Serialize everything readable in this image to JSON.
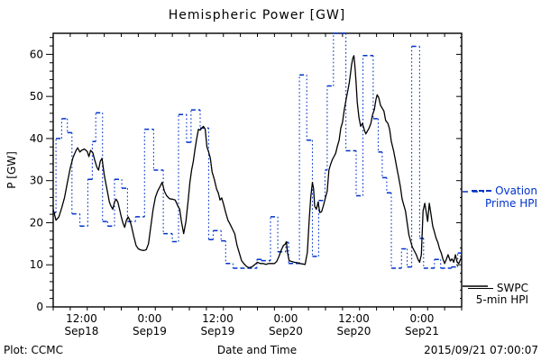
{
  "header": {
    "title": "Hemispheric Power [GW]"
  },
  "footer": {
    "credit": "Plot: CCMC",
    "timestamp": "2015/09/21 07:00:07"
  },
  "legend": {
    "ovation": {
      "line1": "Ovation",
      "line2": "Prime HPI",
      "color": "#0033cc",
      "style": "dashed"
    },
    "swpc": {
      "line1": "SWPC",
      "line2": "5-min HPI",
      "color": "#000000",
      "style": "solid"
    }
  },
  "chart_data": {
    "type": "line",
    "title": "Hemispheric Power [GW]",
    "xlabel": "Date and Time",
    "ylabel": "P [GW]",
    "ylim": [
      0,
      65
    ],
    "y_major_step": 10,
    "y_minor_step": 2,
    "y_major_labels": [
      "0",
      "10",
      "20",
      "30",
      "40",
      "50",
      "60"
    ],
    "x_unit": "hours since 2015-09-18 07:00 UT",
    "x_range_hours": [
      0,
      72
    ],
    "x_minor_step_hours": 3,
    "x_major_ticks": [
      {
        "t": 5,
        "time": "12:00",
        "date": "Sep18"
      },
      {
        "t": 17,
        "time": "0:00",
        "date": "Sep19"
      },
      {
        "t": 29,
        "time": "12:00",
        "date": "Sep19"
      },
      {
        "t": 41,
        "time": "0:00",
        "date": "Sep20"
      },
      {
        "t": 53,
        "time": "12:00",
        "date": "Sep20"
      },
      {
        "t": 65,
        "time": "0:00",
        "date": "Sep21"
      }
    ],
    "grid": false,
    "legend_position": "right-outside",
    "series": [
      {
        "name": "Ovation Prime HPI",
        "color": "#0033cc",
        "style": "step-dashed-horizontal-dotted-vertical",
        "end_t": 72,
        "steps": [
          [
            0,
            22.4
          ],
          [
            0.5,
            40.0
          ],
          [
            1.5,
            44.7
          ],
          [
            2.5,
            41.4
          ],
          [
            3.3,
            22.1
          ],
          [
            4.7,
            19.2
          ],
          [
            6.1,
            30.3
          ],
          [
            6.9,
            39.3
          ],
          [
            7.5,
            46.1
          ],
          [
            8.7,
            20.3
          ],
          [
            9.6,
            19.2
          ],
          [
            10.8,
            30.3
          ],
          [
            12.1,
            28.2
          ],
          [
            13.1,
            20.3
          ],
          [
            14.5,
            21.4
          ],
          [
            16.1,
            42.2
          ],
          [
            17.7,
            32.5
          ],
          [
            19.4,
            17.4
          ],
          [
            21.0,
            15.5
          ],
          [
            22.1,
            45.7
          ],
          [
            23.5,
            39.1
          ],
          [
            24.3,
            46.8
          ],
          [
            25.9,
            42.5
          ],
          [
            27.4,
            16.0
          ],
          [
            28.2,
            18.1
          ],
          [
            29.6,
            15.7
          ],
          [
            30.4,
            10.3
          ],
          [
            31.7,
            9.2
          ],
          [
            35.9,
            11.3
          ],
          [
            36.7,
            11.0
          ],
          [
            38.3,
            21.4
          ],
          [
            39.6,
            13.1
          ],
          [
            41.0,
            15.3
          ],
          [
            41.5,
            10.3
          ],
          [
            43.4,
            55.1
          ],
          [
            44.7,
            39.6
          ],
          [
            45.7,
            12.0
          ],
          [
            46.8,
            25.3
          ],
          [
            47.9,
            32.5
          ],
          [
            48.3,
            52.5
          ],
          [
            49.4,
            65.0
          ],
          [
            51.6,
            37.1
          ],
          [
            53.4,
            26.4
          ],
          [
            54.6,
            59.7
          ],
          [
            56.4,
            44.7
          ],
          [
            57.3,
            36.8
          ],
          [
            58.0,
            30.7
          ],
          [
            58.8,
            27.1
          ],
          [
            59.6,
            9.2
          ],
          [
            61.4,
            13.8
          ],
          [
            62.4,
            9.5
          ],
          [
            63.2,
            61.9
          ],
          [
            64.6,
            16.3
          ],
          [
            65.3,
            9.2
          ],
          [
            67.2,
            11.3
          ],
          [
            68.3,
            9.2
          ],
          [
            70.2,
            9.5
          ],
          [
            71.3,
            12.8
          ]
        ]
      },
      {
        "name": "SWPC 5-min HPI",
        "color": "#000000",
        "style": "solid",
        "points": [
          [
            0,
            23.2
          ],
          [
            0.5,
            20.6
          ],
          [
            1,
            21.4
          ],
          [
            1.5,
            23.5
          ],
          [
            2,
            26
          ],
          [
            2.5,
            29.5
          ],
          [
            3,
            33
          ],
          [
            3.5,
            35.5
          ],
          [
            4,
            37.1
          ],
          [
            4.3,
            37.8
          ],
          [
            4.7,
            36.8
          ],
          [
            5,
            37.2
          ],
          [
            5.5,
            37.5
          ],
          [
            6,
            36.9
          ],
          [
            6.3,
            35.7
          ],
          [
            6.6,
            37.2
          ],
          [
            7,
            36.6
          ],
          [
            7.3,
            35
          ],
          [
            7.7,
            33.2
          ],
          [
            8,
            32.5
          ],
          [
            8.3,
            34.6
          ],
          [
            8.6,
            35.3
          ],
          [
            9,
            31.4
          ],
          [
            9.3,
            29.2
          ],
          [
            9.6,
            27.1
          ],
          [
            9.9,
            24.9
          ],
          [
            10.2,
            23.9
          ],
          [
            10.5,
            23.2
          ],
          [
            10.8,
            24.9
          ],
          [
            11.1,
            25.6
          ],
          [
            11.4,
            24.9
          ],
          [
            11.7,
            23.2
          ],
          [
            12,
            21.4
          ],
          [
            12.3,
            19.9
          ],
          [
            12.6,
            18.9
          ],
          [
            12.9,
            20.6
          ],
          [
            13.2,
            21.4
          ],
          [
            13.5,
            20.6
          ],
          [
            13.8,
            19.2
          ],
          [
            14.2,
            16.8
          ],
          [
            14.6,
            14.6
          ],
          [
            15,
            13.8
          ],
          [
            15.5,
            13.5
          ],
          [
            16,
            13.4
          ],
          [
            16.4,
            13.6
          ],
          [
            16.8,
            15
          ],
          [
            17.2,
            19
          ],
          [
            17.6,
            23
          ],
          [
            18,
            26
          ],
          [
            18.4,
            27.5
          ],
          [
            18.8,
            28.5
          ],
          [
            19.2,
            29.6
          ],
          [
            19.6,
            27.5
          ],
          [
            20,
            26.4
          ],
          [
            20.5,
            25.7
          ],
          [
            21,
            25.6
          ],
          [
            21.5,
            25.4
          ],
          [
            22,
            23.9
          ],
          [
            22.3,
            23.2
          ],
          [
            22.6,
            20.3
          ],
          [
            23,
            17.4
          ],
          [
            23.4,
            20.3
          ],
          [
            23.8,
            25.3
          ],
          [
            24.1,
            29.6
          ],
          [
            24.4,
            32.5
          ],
          [
            24.7,
            34.6
          ],
          [
            25,
            37.5
          ],
          [
            25.3,
            40
          ],
          [
            25.6,
            42.2
          ],
          [
            25.9,
            42
          ],
          [
            26.2,
            42.5
          ],
          [
            26.5,
            42.9
          ],
          [
            26.8,
            42.2
          ],
          [
            27.1,
            38
          ],
          [
            27.4,
            36.8
          ],
          [
            27.7,
            35.3
          ],
          [
            28,
            32.1
          ],
          [
            28.4,
            30.3
          ],
          [
            28.8,
            28
          ],
          [
            29.1,
            27.1
          ],
          [
            29.4,
            25.4
          ],
          [
            29.7,
            25.9
          ],
          [
            30,
            24.5
          ],
          [
            30.4,
            22.4
          ],
          [
            30.8,
            20.6
          ],
          [
            31.2,
            19.6
          ],
          [
            31.6,
            18.5
          ],
          [
            32,
            17.4
          ],
          [
            32.4,
            14.6
          ],
          [
            32.8,
            12.8
          ],
          [
            33.2,
            11
          ],
          [
            33.6,
            10.3
          ],
          [
            34,
            9.7
          ],
          [
            34.5,
            9.3
          ],
          [
            35,
            9.5
          ],
          [
            35.5,
            10
          ],
          [
            36,
            10.6
          ],
          [
            36.5,
            10.3
          ],
          [
            37,
            10.3
          ],
          [
            37.5,
            10.1
          ],
          [
            38,
            10.3
          ],
          [
            38.5,
            10.3
          ],
          [
            39,
            10.3
          ],
          [
            39.4,
            10.8
          ],
          [
            39.8,
            12
          ],
          [
            40.2,
            13.5
          ],
          [
            40.6,
            14.6
          ],
          [
            40.9,
            14.9
          ],
          [
            41.1,
            15.5
          ],
          [
            41.3,
            13
          ],
          [
            41.6,
            11
          ],
          [
            42,
            10.8
          ],
          [
            42.5,
            10.6
          ],
          [
            43,
            10.5
          ],
          [
            43.5,
            10.3
          ],
          [
            44,
            10.2
          ],
          [
            44.4,
            10.1
          ],
          [
            44.8,
            13
          ],
          [
            45.1,
            20.3
          ],
          [
            45.4,
            26
          ],
          [
            45.7,
            29.6
          ],
          [
            45.9,
            28
          ],
          [
            46.1,
            23.9
          ],
          [
            46.4,
            23.2
          ],
          [
            46.7,
            24.9
          ],
          [
            47,
            22.4
          ],
          [
            47.3,
            22.6
          ],
          [
            47.6,
            23.9
          ],
          [
            48,
            26
          ],
          [
            48.3,
            27.5
          ],
          [
            48.6,
            32.5
          ],
          [
            48.9,
            33.9
          ],
          [
            49.2,
            35
          ],
          [
            49.5,
            35.7
          ],
          [
            49.8,
            36.5
          ],
          [
            50.1,
            38.2
          ],
          [
            50.4,
            39.6
          ],
          [
            50.7,
            42.5
          ],
          [
            51,
            43.9
          ],
          [
            51.3,
            46.8
          ],
          [
            51.6,
            49
          ],
          [
            51.9,
            51.1
          ],
          [
            52.2,
            53.3
          ],
          [
            52.4,
            55.4
          ],
          [
            52.6,
            57.5
          ],
          [
            52.8,
            59
          ],
          [
            53,
            59.7
          ],
          [
            53.2,
            57
          ],
          [
            53.4,
            53
          ],
          [
            53.6,
            48.6
          ],
          [
            53.9,
            45
          ],
          [
            54.2,
            42.9
          ],
          [
            54.5,
            43.6
          ],
          [
            54.8,
            42.2
          ],
          [
            55.1,
            41.1
          ],
          [
            55.4,
            41.8
          ],
          [
            55.7,
            42.5
          ],
          [
            56,
            43.6
          ],
          [
            56.3,
            45.7
          ],
          [
            56.6,
            46.8
          ],
          [
            56.9,
            49.3
          ],
          [
            57.1,
            50.4
          ],
          [
            57.4,
            49.7
          ],
          [
            57.7,
            47.9
          ],
          [
            58,
            47.2
          ],
          [
            58.3,
            46.5
          ],
          [
            58.6,
            44.3
          ],
          [
            59,
            43.6
          ],
          [
            59.3,
            42.2
          ],
          [
            59.6,
            39.3
          ],
          [
            60,
            37.1
          ],
          [
            60.3,
            35
          ],
          [
            60.6,
            32.8
          ],
          [
            60.9,
            30.7
          ],
          [
            61.2,
            28.5
          ],
          [
            61.5,
            25.7
          ],
          [
            61.8,
            24.2
          ],
          [
            62.1,
            22.8
          ],
          [
            62.4,
            19.9
          ],
          [
            62.7,
            17.1
          ],
          [
            63,
            15.6
          ],
          [
            63.3,
            14.2
          ],
          [
            63.6,
            13.5
          ],
          [
            64,
            12.4
          ],
          [
            64.3,
            11.3
          ],
          [
            64.6,
            10.6
          ],
          [
            64.9,
            12.4
          ],
          [
            65.2,
            22.8
          ],
          [
            65.5,
            24.6
          ],
          [
            65.8,
            22.1
          ],
          [
            66,
            20.3
          ],
          [
            66.3,
            24.6
          ],
          [
            66.6,
            22
          ],
          [
            66.9,
            19.2
          ],
          [
            67.2,
            17.8
          ],
          [
            67.5,
            16.3
          ],
          [
            67.8,
            15.3
          ],
          [
            68.1,
            13.8
          ],
          [
            68.4,
            12.8
          ],
          [
            68.7,
            11.4
          ],
          [
            69,
            10.3
          ],
          [
            69.3,
            11.3
          ],
          [
            69.6,
            12.4
          ],
          [
            70,
            10.9
          ],
          [
            70.3,
            11.4
          ],
          [
            70.6,
            10.6
          ],
          [
            70.9,
            12.4
          ],
          [
            71.2,
            10.6
          ],
          [
            71.5,
            10.3
          ],
          [
            71.8,
            11.3
          ],
          [
            72,
            11.7
          ]
        ]
      }
    ]
  }
}
